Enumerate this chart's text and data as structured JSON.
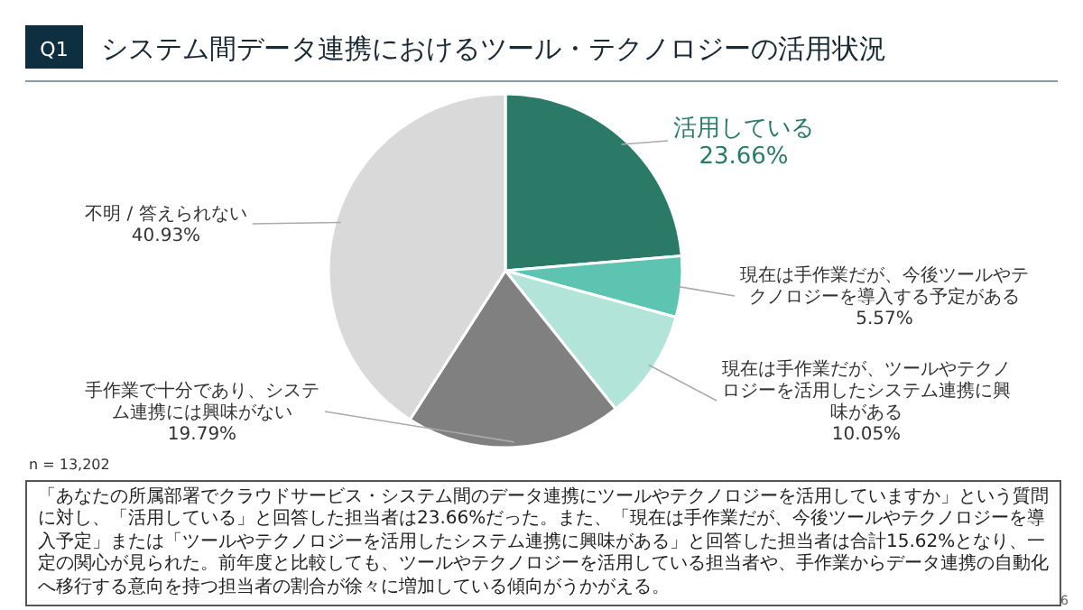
{
  "chart_data": {
    "type": "pie",
    "title": "システム間データ連携におけるツール・テクノロジーの活用状況",
    "categories": [
      "活用している",
      "現在は手作業だが、今後ツールやテクノロジーを導入する予定がある",
      "現在は手作業だが、ツールやテクノロジーを活用したシステム連携に興味がある",
      "手作業で十分であり、システム連携には興味がない",
      "不明 / 答えられない"
    ],
    "values": [
      23.66,
      5.57,
      10.05,
      19.79,
      40.93
    ],
    "value_labels": [
      "23.66%",
      "5.57%",
      "10.05%",
      "19.79%",
      "40.93%"
    ],
    "colors": [
      "#2b7a68",
      "#5cc4b0",
      "#b3e4da",
      "#808080",
      "#d9d9d9"
    ],
    "annotations": [
      "Q1",
      "n = 13,202",
      "「あなたの所属部署でクラウドサービス・システム間のデータ連携にツールやテクノロジーを活用していますか」という質問に対し、「活用している」と回答した担当者は23.66%だった。また、「現在は手作業だが、今後ツールやテクノロジーを導入予定」または「ツールやテクノロジーを活用したシステム連携に興味がある」と回答した担当者は合計15.62%となり、一定の関心が見られた。前年度と比較しても、ツールやテクノロジーを活用している担当者や、手作業からデータ連携の自動化へ移行する意向を持つ担当者の割合が徐々に増加している傾向がうかがえる。",
      "6"
    ]
  }
}
